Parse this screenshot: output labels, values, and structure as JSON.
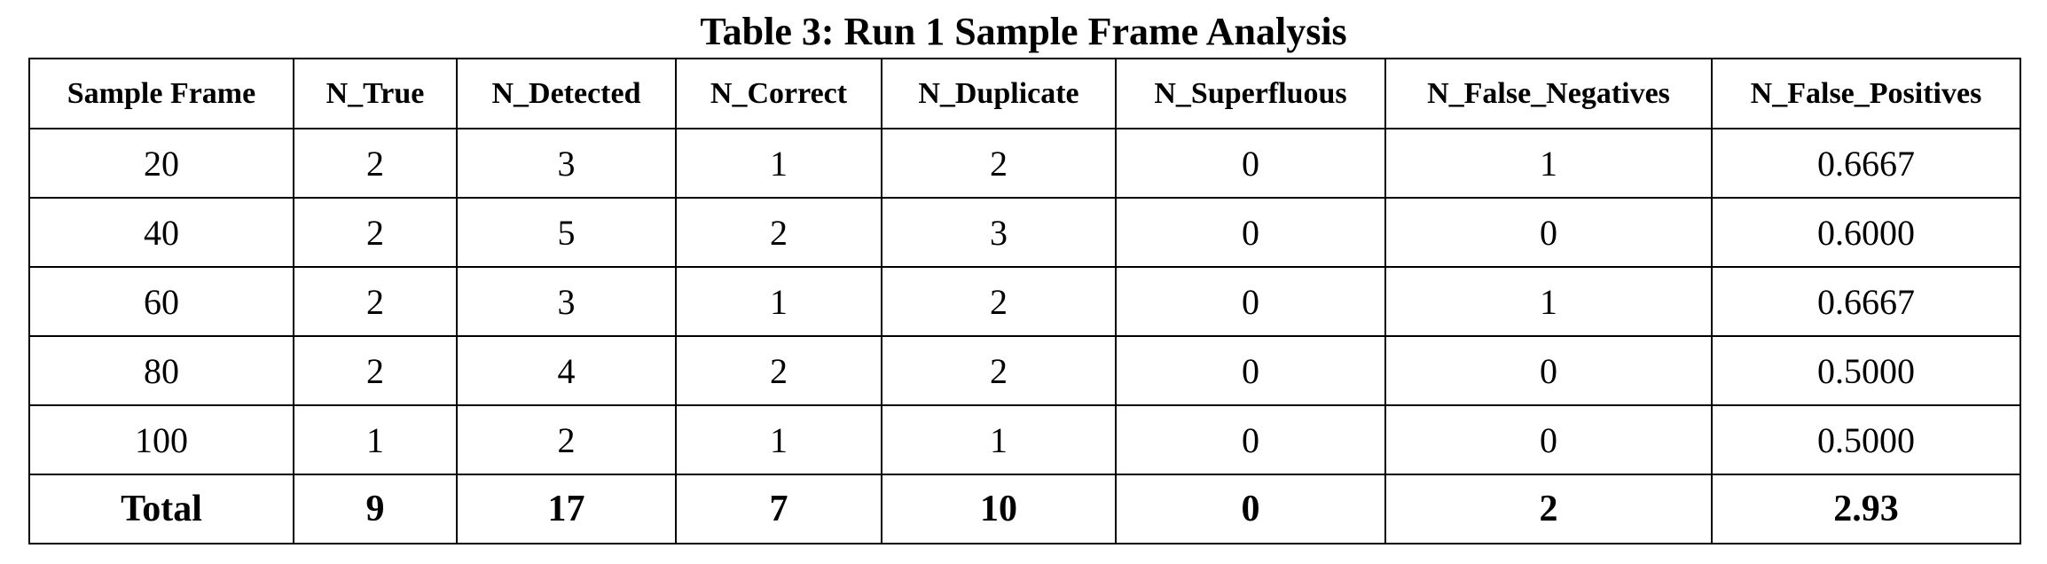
{
  "title": "Table 3: Run 1 Sample Frame Analysis",
  "columns": [
    "Sample Frame",
    "N_True",
    "N_Detected",
    "N_Correct",
    "N_Duplicate",
    "N_Superfluous",
    "N_False_Negatives",
    "N_False_Positives"
  ],
  "rows": [
    [
      "20",
      "2",
      "3",
      "1",
      "2",
      "0",
      "1",
      "0.6667"
    ],
    [
      "40",
      "2",
      "5",
      "2",
      "3",
      "0",
      "0",
      "0.6000"
    ],
    [
      "60",
      "2",
      "3",
      "1",
      "2",
      "0",
      "1",
      "0.6667"
    ],
    [
      "80",
      "2",
      "4",
      "2",
      "2",
      "0",
      "0",
      "0.5000"
    ],
    [
      "100",
      "1",
      "2",
      "1",
      "1",
      "0",
      "0",
      "0.5000"
    ]
  ],
  "total": [
    "Total",
    "9",
    "17",
    "7",
    "10",
    "0",
    "2",
    "2.93"
  ]
}
